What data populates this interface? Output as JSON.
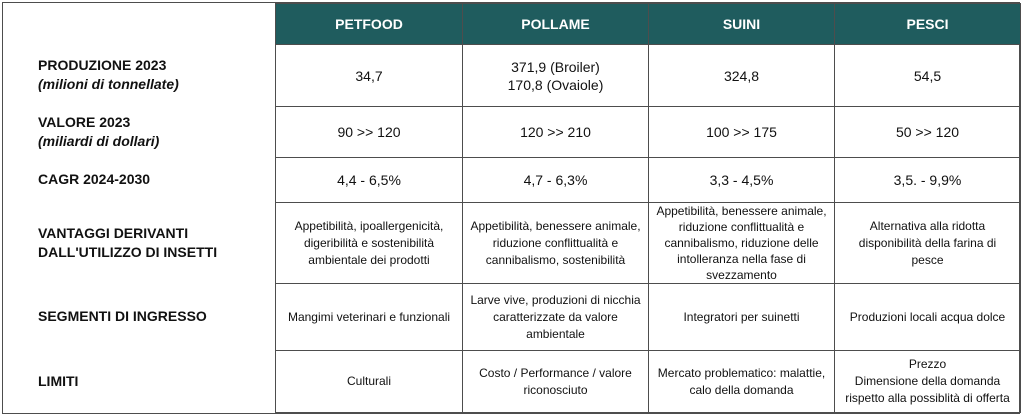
{
  "columns": [
    "PETFOOD",
    "POLLAME",
    "SUINI",
    "PESCI"
  ],
  "rows": [
    {
      "label": "PRODUZIONE 2023",
      "sublabel": "(milioni di tonnellate)",
      "cells": [
        "34,7",
        "371,9 (Broiler)\n170,8 (Ovaiole)",
        "324,8",
        "54,5"
      ]
    },
    {
      "label": "VALORE 2023",
      "sublabel": "(miliardi di dollari)",
      "cells": [
        "90 >> 120",
        "120 >> 210",
        "100 >> 175",
        "50 >> 120"
      ]
    },
    {
      "label": "CAGR 2024-2030",
      "sublabel": "",
      "cells": [
        "4,4 - 6,5%",
        "4,7 - 6,3%",
        "3,3 - 4,5%",
        "3,5. - 9,9%"
      ]
    },
    {
      "label": "VANTAGGI DERIVANTI\nDALL'UTILIZZO DI INSETTI",
      "sublabel": "",
      "cells": [
        "Appetibilità, ipoallergenicità,\ndigeribilità e sostenibilità\nambientale dei prodotti",
        "Appetibilità, benessere animale,\nriduzione conflittualità e\ncannibalismo, sostenibilità",
        "Appetibilità, benessere animale,\nriduzione conflittualità e\ncannibalismo, riduzione delle\nintolleranza nella fase di\nsvezzamento",
        "Alternativa alla ridotta\ndisponibilità della farina di\npesce"
      ]
    },
    {
      "label": "SEGMENTI DI INGRESSO",
      "sublabel": "",
      "cells": [
        "Mangimi veterinari  e funzionali",
        "Larve vive, produzioni di nicchia\ncaratterizzate da valore\nambientale",
        "Integratori per suinetti",
        "Produzioni locali acqua dolce"
      ]
    },
    {
      "label": "LIMITI",
      "sublabel": "",
      "cells": [
        "Culturali",
        "Costo / Performance / valore\nriconosciuto",
        "Mercato problematico: malattie,\ncalo della domanda",
        "Prezzo\nDimensione della domanda\nrispetto alla possiblità di offerta"
      ]
    }
  ]
}
